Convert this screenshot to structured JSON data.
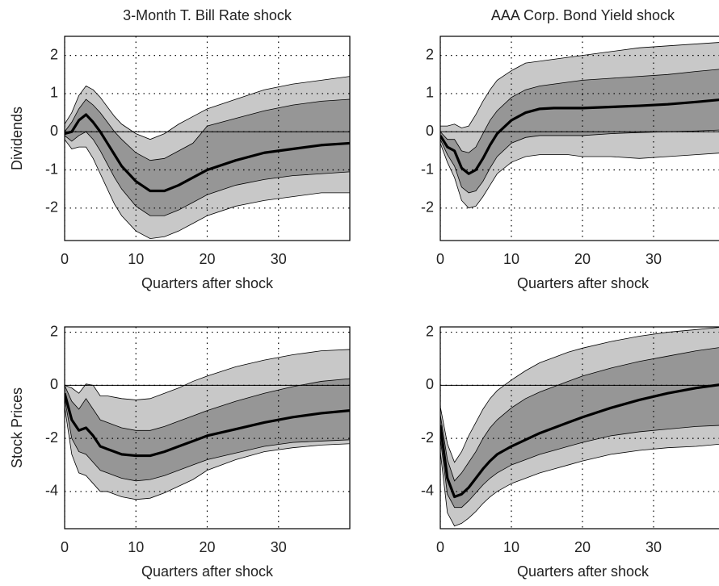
{
  "chart_data": [
    {
      "type": "band",
      "title": "3-Month T. Bill Rate shock",
      "xlabel": "Quarters after shock",
      "ylabel": "Dividends",
      "x": [
        0,
        1,
        2,
        3,
        4,
        5,
        6,
        7,
        8,
        10,
        12,
        14,
        16,
        18,
        20,
        24,
        28,
        32,
        36,
        40
      ],
      "xlim": [
        0,
        40
      ],
      "ylim": [
        -2.85,
        2.5
      ],
      "xticks": [
        0,
        10,
        20,
        30
      ],
      "yticks": [
        -2,
        -1,
        0,
        1,
        2
      ],
      "grid": true,
      "reference_line": 0,
      "bands": [
        {
          "color": "#c8c8c8",
          "lower": [
            -0.2,
            -0.45,
            -0.4,
            -0.4,
            -0.7,
            -1.1,
            -1.5,
            -1.9,
            -2.2,
            -2.6,
            -2.8,
            -2.75,
            -2.6,
            -2.4,
            -2.2,
            -1.95,
            -1.8,
            -1.7,
            -1.6,
            -1.6
          ],
          "upper": [
            0.2,
            0.5,
            0.95,
            1.2,
            1.1,
            0.9,
            0.65,
            0.4,
            0.2,
            -0.05,
            -0.2,
            -0.05,
            0.2,
            0.4,
            0.6,
            0.85,
            1.1,
            1.25,
            1.35,
            1.45
          ]
        },
        {
          "color": "#969696",
          "lower": [
            -0.1,
            -0.25,
            -0.1,
            0.0,
            -0.2,
            -0.5,
            -0.85,
            -1.2,
            -1.5,
            -1.95,
            -2.2,
            -2.2,
            -2.05,
            -1.85,
            -1.65,
            -1.4,
            -1.25,
            -1.15,
            -1.1,
            -1.05
          ],
          "upper": [
            0.0,
            0.25,
            0.6,
            0.85,
            0.7,
            0.5,
            0.25,
            0.0,
            -0.2,
            -0.55,
            -0.75,
            -0.7,
            -0.5,
            -0.3,
            0.15,
            0.35,
            0.55,
            0.7,
            0.8,
            0.85
          ]
        }
      ],
      "series": [
        {
          "color": "#000000",
          "values": [
            -0.05,
            0.0,
            0.3,
            0.45,
            0.25,
            0.0,
            -0.3,
            -0.6,
            -0.9,
            -1.3,
            -1.55,
            -1.55,
            -1.4,
            -1.2,
            -1.0,
            -0.75,
            -0.55,
            -0.45,
            -0.35,
            -0.3
          ]
        }
      ]
    },
    {
      "type": "band",
      "title": "AAA Corp. Bond Yield shock",
      "xlabel": "Quarters after shock",
      "x": [
        0,
        1,
        2,
        3,
        4,
        5,
        6,
        7,
        8,
        10,
        12,
        14,
        16,
        18,
        20,
        24,
        28,
        32,
        36,
        40
      ],
      "xlim": [
        0,
        40
      ],
      "ylim": [
        -2.85,
        2.5
      ],
      "xticks": [
        0,
        10,
        20,
        30
      ],
      "yticks": [
        -2,
        -1,
        0,
        1,
        2
      ],
      "grid": true,
      "reference_line": 0,
      "bands": [
        {
          "color": "#c8c8c8",
          "lower": [
            -0.3,
            -0.8,
            -1.2,
            -1.8,
            -2.0,
            -1.95,
            -1.7,
            -1.4,
            -1.1,
            -0.8,
            -0.65,
            -0.6,
            -0.6,
            -0.6,
            -0.65,
            -0.65,
            -0.7,
            -0.65,
            -0.6,
            -0.55
          ],
          "upper": [
            0.15,
            0.15,
            0.2,
            0.1,
            0.15,
            0.45,
            0.8,
            1.1,
            1.35,
            1.6,
            1.8,
            1.85,
            1.9,
            1.95,
            2.0,
            2.1,
            2.2,
            2.25,
            2.3,
            2.35
          ]
        },
        {
          "color": "#969696",
          "lower": [
            -0.2,
            -0.6,
            -0.9,
            -1.45,
            -1.6,
            -1.55,
            -1.3,
            -0.95,
            -0.65,
            -0.3,
            -0.15,
            -0.1,
            -0.1,
            -0.1,
            -0.1,
            -0.05,
            -0.02,
            0.0,
            0.02,
            0.05
          ],
          "upper": [
            0.0,
            -0.2,
            -0.2,
            -0.5,
            -0.55,
            -0.4,
            -0.05,
            0.3,
            0.55,
            0.9,
            1.1,
            1.2,
            1.25,
            1.3,
            1.35,
            1.4,
            1.45,
            1.5,
            1.58,
            1.65
          ]
        }
      ],
      "series": [
        {
          "color": "#000000",
          "values": [
            -0.1,
            -0.4,
            -0.5,
            -0.95,
            -1.1,
            -1.0,
            -0.7,
            -0.35,
            -0.05,
            0.3,
            0.5,
            0.6,
            0.62,
            0.62,
            0.62,
            0.65,
            0.68,
            0.72,
            0.78,
            0.85
          ]
        }
      ]
    },
    {
      "type": "band",
      "xlabel": "Quarters after shock",
      "ylabel": "Stock Prices",
      "x": [
        0,
        1,
        2,
        3,
        4,
        5,
        6,
        7,
        8,
        10,
        12,
        14,
        16,
        18,
        20,
        24,
        28,
        32,
        36,
        40
      ],
      "xlim": [
        0,
        40
      ],
      "ylim": [
        -5.4,
        2.2
      ],
      "xticks": [
        0,
        10,
        20,
        30
      ],
      "yticks": [
        -4,
        -2,
        0,
        2
      ],
      "grid": true,
      "reference_line": 0,
      "bands": [
        {
          "color": "#c8c8c8",
          "lower": [
            -0.8,
            -2.6,
            -3.3,
            -3.4,
            -3.7,
            -4.0,
            -4.0,
            -4.1,
            -4.2,
            -4.3,
            -4.25,
            -4.05,
            -3.8,
            -3.55,
            -3.2,
            -2.8,
            -2.5,
            -2.35,
            -2.25,
            -2.2
          ],
          "upper": [
            0.0,
            -0.1,
            -0.3,
            0.05,
            0.0,
            -0.4,
            -0.4,
            -0.45,
            -0.5,
            -0.55,
            -0.5,
            -0.3,
            -0.1,
            0.15,
            0.35,
            0.7,
            0.95,
            1.15,
            1.3,
            1.35
          ]
        },
        {
          "color": "#969696",
          "lower": [
            -0.5,
            -2.0,
            -2.5,
            -2.6,
            -2.9,
            -3.2,
            -3.3,
            -3.4,
            -3.5,
            -3.6,
            -3.55,
            -3.4,
            -3.2,
            -3.0,
            -2.8,
            -2.55,
            -2.3,
            -2.15,
            -2.1,
            -2.05
          ],
          "upper": [
            0.0,
            -0.6,
            -0.9,
            -0.5,
            -0.9,
            -1.3,
            -1.4,
            -1.5,
            -1.6,
            -1.7,
            -1.7,
            -1.55,
            -1.35,
            -1.15,
            -0.95,
            -0.6,
            -0.3,
            -0.05,
            0.15,
            0.25
          ]
        }
      ],
      "series": [
        {
          "color": "#000000",
          "values": [
            -0.3,
            -1.3,
            -1.7,
            -1.6,
            -1.9,
            -2.3,
            -2.4,
            -2.5,
            -2.6,
            -2.65,
            -2.65,
            -2.5,
            -2.3,
            -2.1,
            -1.9,
            -1.65,
            -1.4,
            -1.2,
            -1.05,
            -0.95
          ]
        }
      ]
    },
    {
      "type": "band",
      "xlabel": "Quarters after shock",
      "x": [
        0,
        1,
        2,
        3,
        4,
        5,
        6,
        7,
        8,
        10,
        12,
        14,
        16,
        18,
        20,
        24,
        28,
        32,
        36,
        40
      ],
      "xlim": [
        0,
        40
      ],
      "ylim": [
        -5.4,
        2.2
      ],
      "xticks": [
        0,
        10,
        20,
        30
      ],
      "yticks": [
        -4,
        -2,
        0,
        2
      ],
      "grid": true,
      "reference_line": 0,
      "bands": [
        {
          "color": "#c8c8c8",
          "lower": [
            -2.5,
            -4.8,
            -5.3,
            -5.2,
            -5.0,
            -4.75,
            -4.45,
            -4.2,
            -4.0,
            -3.7,
            -3.5,
            -3.3,
            -3.15,
            -3.0,
            -2.85,
            -2.6,
            -2.45,
            -2.35,
            -2.3,
            -2.2
          ],
          "upper": [
            -0.8,
            -2.2,
            -2.9,
            -2.5,
            -1.9,
            -1.4,
            -0.9,
            -0.5,
            -0.2,
            0.2,
            0.55,
            0.85,
            1.05,
            1.25,
            1.4,
            1.65,
            1.85,
            2.0,
            2.1,
            2.2
          ]
        },
        {
          "color": "#969696",
          "lower": [
            -2.0,
            -4.1,
            -4.6,
            -4.6,
            -4.35,
            -4.05,
            -3.75,
            -3.5,
            -3.3,
            -3.0,
            -2.8,
            -2.6,
            -2.45,
            -2.3,
            -2.15,
            -1.9,
            -1.75,
            -1.65,
            -1.55,
            -1.5
          ],
          "upper": [
            -1.1,
            -2.8,
            -3.6,
            -3.3,
            -2.9,
            -2.5,
            -2.0,
            -1.6,
            -1.3,
            -0.85,
            -0.5,
            -0.25,
            -0.05,
            0.15,
            0.35,
            0.65,
            0.9,
            1.1,
            1.3,
            1.45
          ]
        }
      ],
      "series": [
        {
          "color": "#000000",
          "values": [
            -1.5,
            -3.5,
            -4.2,
            -4.1,
            -3.85,
            -3.5,
            -3.15,
            -2.85,
            -2.6,
            -2.3,
            -2.05,
            -1.8,
            -1.6,
            -1.4,
            -1.2,
            -0.85,
            -0.55,
            -0.3,
            -0.1,
            0.05
          ]
        }
      ]
    }
  ]
}
